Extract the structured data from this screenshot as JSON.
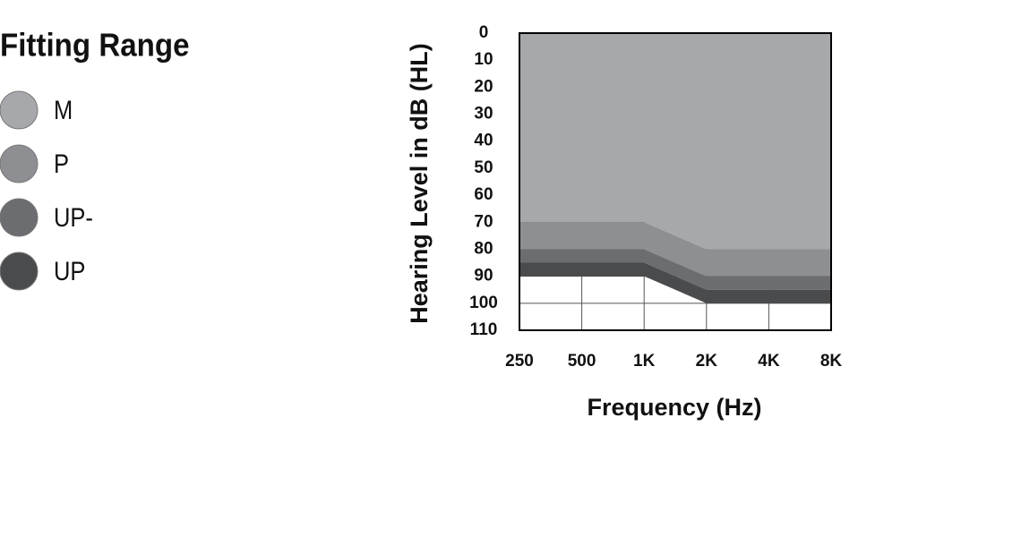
{
  "chart_data": {
    "type": "stacked-area",
    "legend_title": "Fitting Range",
    "x_label": "Frequency (Hz)",
    "y_label": "Hearing Level in dB (HL)",
    "categories": [
      "250",
      "500",
      "1K",
      "2K",
      "4K",
      "8K"
    ],
    "series": [
      {
        "name": "M",
        "color": "#a7a8ab",
        "values": [
          70,
          70,
          70,
          80,
          80,
          80
        ]
      },
      {
        "name": "P",
        "color": "#8e8f92",
        "values": [
          10,
          10,
          10,
          10,
          10,
          10
        ]
      },
      {
        "name": "UP-",
        "color": "#6c6d70",
        "values": [
          5,
          5,
          5,
          5,
          5,
          5
        ]
      },
      {
        "name": "UP",
        "color": "#4a4b4d",
        "values": [
          5,
          5,
          5,
          5,
          5,
          5
        ]
      }
    ],
    "ylim": [
      0,
      110
    ],
    "yticks": [
      0,
      10,
      20,
      30,
      40,
      50,
      60,
      70,
      80,
      90,
      100,
      110
    ],
    "y_inverted": true,
    "grid": true
  }
}
